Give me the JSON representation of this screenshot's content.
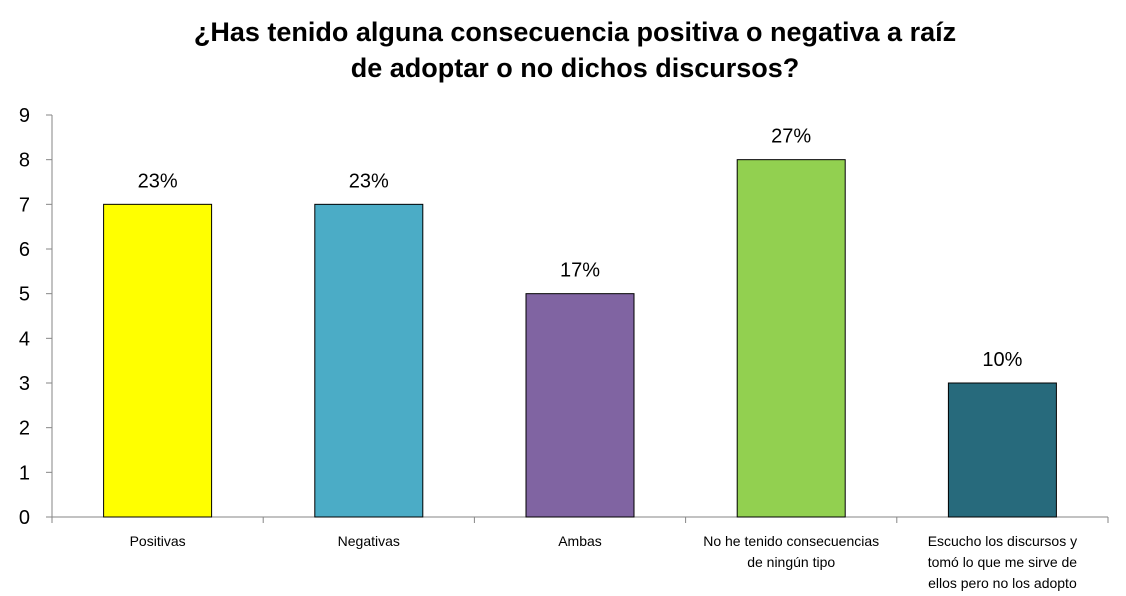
{
  "chart_data": {
    "type": "bar",
    "title": "¿Has tenido alguna consecuencia positiva o negativa a raíz de adoptar o no dichos discursos?",
    "xlabel": "",
    "ylabel": "",
    "ylim": [
      0,
      9
    ],
    "yticks": [
      0,
      1,
      2,
      3,
      4,
      5,
      6,
      7,
      8,
      9
    ],
    "grid": false,
    "legend": "none",
    "categories": [
      "Positivas",
      "Negativas",
      "Ambas",
      "No he tenido consecuencias de ningún tipo",
      "Escucho los discursos y tomó lo que me sirve de ellos pero no los adopto"
    ],
    "category_lines": [
      [
        "Positivas"
      ],
      [
        "Negativas"
      ],
      [
        "Ambas"
      ],
      [
        "No he tenido consecuencias",
        "de ningún tipo"
      ],
      [
        "Escucho los discursos y",
        "tomó lo que me sirve de",
        "ellos pero no los adopto"
      ]
    ],
    "values": [
      7,
      7,
      5,
      8,
      3
    ],
    "data_labels": [
      "23%",
      "23%",
      "17%",
      "27%",
      "10%"
    ],
    "colors": [
      "#FFFF00",
      "#4BACC6",
      "#8064A2",
      "#92D050",
      "#276A7C"
    ]
  }
}
